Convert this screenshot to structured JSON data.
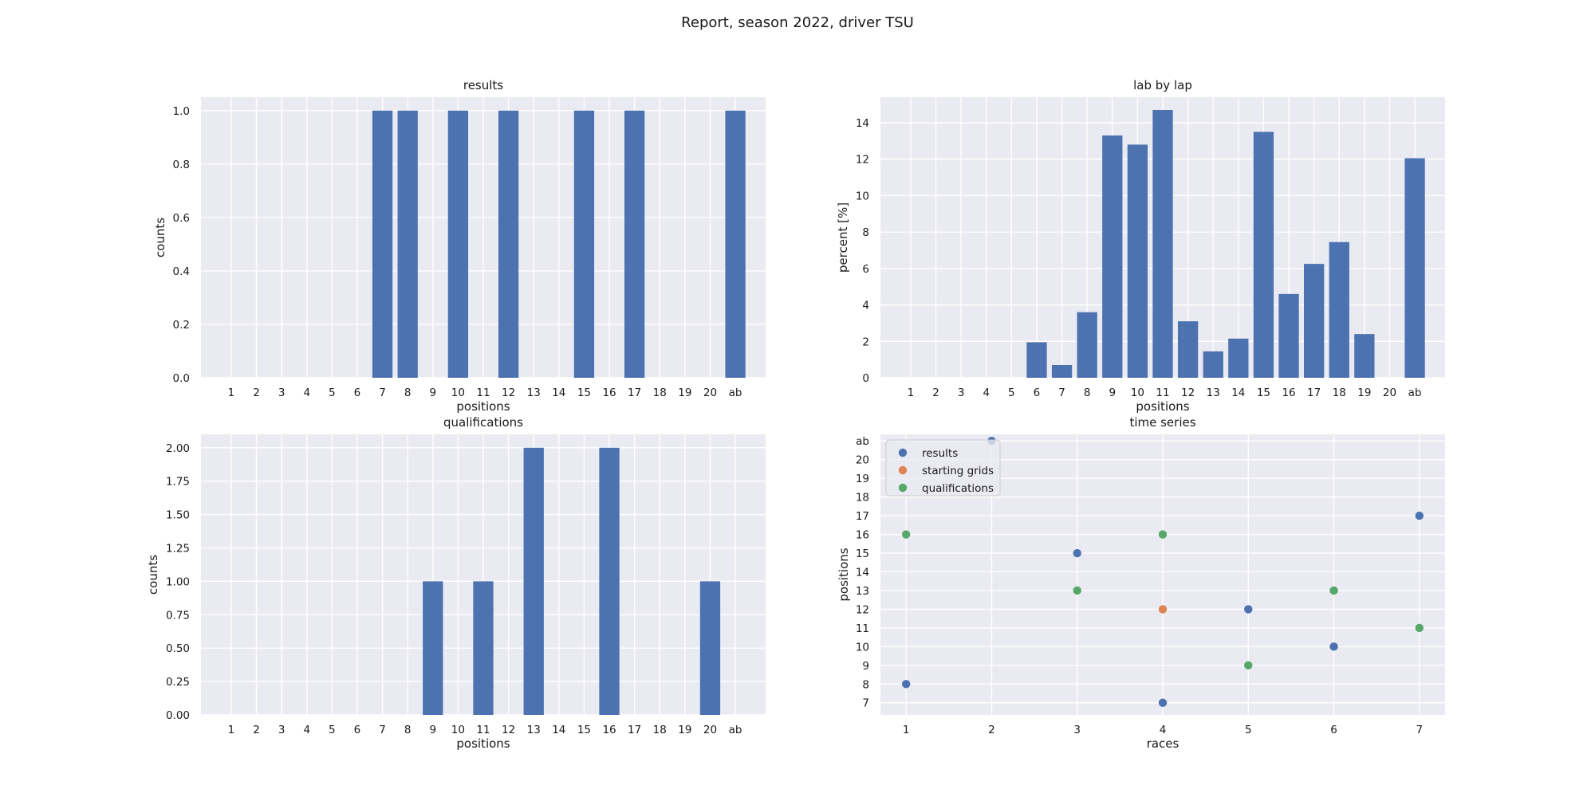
{
  "figure": {
    "title": "Report, season 2022, driver TSU",
    "bar_color": "#4c72b0",
    "background": "#eaeaf2",
    "grid_color": "#ffffff"
  },
  "chart_data": [
    {
      "type": "bar",
      "title": "results",
      "xlabel": "positions",
      "ylabel": "counts",
      "categories": [
        "1",
        "2",
        "3",
        "4",
        "5",
        "6",
        "7",
        "8",
        "9",
        "10",
        "11",
        "12",
        "13",
        "14",
        "15",
        "16",
        "17",
        "18",
        "19",
        "20",
        "ab"
      ],
      "values": [
        0,
        0,
        0,
        0,
        0,
        0,
        1,
        1,
        0,
        1,
        0,
        1,
        0,
        0,
        1,
        0,
        1,
        0,
        0,
        0,
        1
      ],
      "ylim": [
        0,
        1.05
      ],
      "yticks": [
        "0.0",
        "0.2",
        "0.4",
        "0.6",
        "0.8",
        "1.0"
      ],
      "ytick_values": [
        0,
        0.2,
        0.4,
        0.6,
        0.8,
        1.0
      ],
      "grid": true
    },
    {
      "type": "bar",
      "title": "lab by lap",
      "xlabel": "positions",
      "ylabel": "percent [%]",
      "categories": [
        "1",
        "2",
        "3",
        "4",
        "5",
        "6",
        "7",
        "8",
        "9",
        "10",
        "11",
        "12",
        "13",
        "14",
        "15",
        "16",
        "17",
        "18",
        "19",
        "20",
        "ab"
      ],
      "values": [
        0,
        0,
        0,
        0,
        0,
        1.95,
        0.7,
        3.6,
        13.3,
        12.8,
        14.7,
        3.1,
        1.45,
        2.15,
        13.5,
        4.6,
        6.25,
        7.45,
        2.4,
        0,
        12.05
      ],
      "ylim": [
        0,
        15.4
      ],
      "yticks": [
        "0",
        "2",
        "4",
        "6",
        "8",
        "10",
        "12",
        "14"
      ],
      "ytick_values": [
        0,
        2,
        4,
        6,
        8,
        10,
        12,
        14
      ],
      "grid": true
    },
    {
      "type": "bar",
      "title": "qualifications",
      "xlabel": "positions",
      "ylabel": "counts",
      "categories": [
        "1",
        "2",
        "3",
        "4",
        "5",
        "6",
        "7",
        "8",
        "9",
        "10",
        "11",
        "12",
        "13",
        "14",
        "15",
        "16",
        "17",
        "18",
        "19",
        "20",
        "ab"
      ],
      "values": [
        0,
        0,
        0,
        0,
        0,
        0,
        0,
        0,
        1,
        0,
        1,
        0,
        2,
        0,
        0,
        2,
        0,
        0,
        0,
        1,
        0
      ],
      "ylim": [
        0,
        2.1
      ],
      "yticks": [
        "0.00",
        "0.25",
        "0.50",
        "0.75",
        "1.00",
        "1.25",
        "1.50",
        "1.75",
        "2.00"
      ],
      "ytick_values": [
        0,
        0.25,
        0.5,
        0.75,
        1.0,
        1.25,
        1.5,
        1.75,
        2.0
      ],
      "grid": true
    },
    {
      "type": "scatter",
      "title": "time series",
      "xlabel": "races",
      "ylabel": "positions",
      "xlim": [
        0.7,
        7.3
      ],
      "xticks": [
        "1",
        "2",
        "3",
        "4",
        "5",
        "6",
        "7"
      ],
      "xtick_values": [
        1,
        2,
        3,
        4,
        5,
        6,
        7
      ],
      "ycategories": [
        "7",
        "8",
        "9",
        "10",
        "11",
        "12",
        "13",
        "14",
        "15",
        "16",
        "17",
        "18",
        "19",
        "20",
        "ab"
      ],
      "ylim": [
        -0.65,
        14.35
      ],
      "legend_position": "top-left",
      "grid": true,
      "series": [
        {
          "name": "results",
          "color": "#4c72b0",
          "x": [
            1,
            2,
            3,
            4,
            5,
            6,
            7
          ],
          "y": [
            "8",
            "ab",
            "15",
            "7",
            "12",
            "10",
            "17"
          ]
        },
        {
          "name": "starting grids",
          "color": "#dd8452",
          "x": [
            4
          ],
          "y": [
            "12"
          ]
        },
        {
          "name": "qualifications",
          "color": "#55a868",
          "x": [
            1,
            3,
            4,
            5,
            6,
            7
          ],
          "y": [
            "16",
            "13",
            "16",
            "9",
            "13",
            "11"
          ]
        }
      ]
    }
  ]
}
